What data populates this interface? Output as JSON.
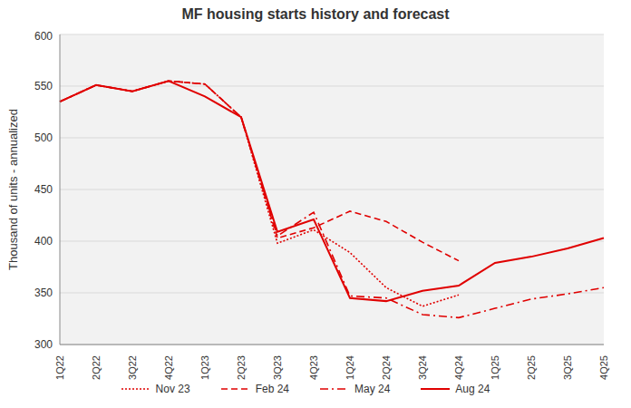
{
  "chart_data": {
    "type": "line",
    "title": "MF housing starts history and forecast",
    "y_label": "Thousand  of units - annualized",
    "categories": [
      "1Q22",
      "2Q22",
      "3Q22",
      "4Q22",
      "1Q23",
      "2Q23",
      "3Q23",
      "4Q23",
      "1Q24",
      "2Q24",
      "3Q24",
      "4Q24",
      "1Q25",
      "2Q25",
      "3Q25",
      "4Q25"
    ],
    "series": [
      {
        "name": "Nov 23",
        "color": "#e00000",
        "line_style": "dotted",
        "values": [
          535,
          551,
          545,
          555,
          552,
          520,
          398,
          411,
          389,
          355,
          337,
          348,
          null,
          null,
          null,
          null
        ]
      },
      {
        "name": "Feb 24",
        "color": "#e00000",
        "line_style": "dashed",
        "values": [
          535,
          551,
          545,
          555,
          552,
          520,
          403,
          413,
          429,
          419,
          399,
          381,
          null,
          null,
          null,
          null
        ]
      },
      {
        "name": "May 24",
        "color": "#e00000",
        "line_style": "dashdot",
        "values": [
          535,
          551,
          545,
          555,
          552,
          520,
          405,
          428,
          347,
          345,
          329,
          326,
          335,
          344,
          349,
          355
        ]
      },
      {
        "name": "Aug 24",
        "color": "#e00000",
        "line_style": "solid",
        "values": [
          535,
          551,
          545,
          555,
          540,
          520,
          409,
          421,
          345,
          342,
          352,
          357,
          379,
          385,
          393,
          403
        ]
      }
    ],
    "ylim": [
      300,
      600
    ],
    "yticks": [
      300,
      350,
      400,
      450,
      500,
      550,
      600
    ],
    "grid": true,
    "legend": "bottom"
  }
}
